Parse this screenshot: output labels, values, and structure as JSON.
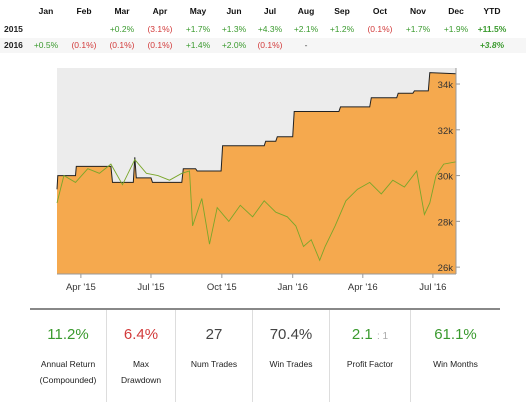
{
  "returns_table": {
    "headers": [
      "Jan",
      "Feb",
      "Mar",
      "Apr",
      "May",
      "Jun",
      "Jul",
      "Aug",
      "Sep",
      "Oct",
      "Nov",
      "Dec",
      "YTD"
    ],
    "rows": [
      {
        "year": "2015",
        "cells": [
          "",
          "",
          "+0.2%",
          "(3.1%)",
          "+1.7%",
          "+1.3%",
          "+4.3%",
          "+2.1%",
          "+1.2%",
          "(0.1%)",
          "+1.7%",
          "+1.9%",
          "+11.5%"
        ]
      },
      {
        "year": "2016",
        "cells": [
          "+0.5%",
          "(0.1%)",
          "(0.1%)",
          "(0.1%)",
          "+1.4%",
          "+2.0%",
          "(0.1%)",
          "-",
          "",
          "",
          "",
          "",
          "+3.8%"
        ]
      }
    ]
  },
  "chart_data": {
    "type": "area",
    "x_ticks": [
      "Apr '15",
      "Jul '15",
      "Oct '15",
      "Jan '16",
      "Apr '16",
      "Jul '16"
    ],
    "y_ticks": [
      "34k",
      "32k",
      "30k",
      "28k",
      "26k"
    ],
    "ylim": [
      25700,
      34700
    ],
    "x_domain": [
      "2015-03-01",
      "2016-07-31"
    ],
    "series": [
      {
        "kind": "area",
        "color": "#f5a94e",
        "points": [
          [
            "2015-03-01",
            29400
          ],
          [
            "2015-03-02",
            30000
          ],
          [
            "2015-03-25",
            30000
          ],
          [
            "2015-03-26",
            30400
          ],
          [
            "2015-05-10",
            30400
          ],
          [
            "2015-05-12",
            29700
          ],
          [
            "2015-06-08",
            29700
          ],
          [
            "2015-06-10",
            30800
          ],
          [
            "2015-06-12",
            29900
          ],
          [
            "2015-07-01",
            29900
          ],
          [
            "2015-07-03",
            29700
          ],
          [
            "2015-08-10",
            29700
          ],
          [
            "2015-08-12",
            30300
          ],
          [
            "2015-08-28",
            30300
          ],
          [
            "2015-08-30",
            30200
          ],
          [
            "2015-09-30",
            30200
          ],
          [
            "2015-10-02",
            31300
          ],
          [
            "2015-11-25",
            31300
          ],
          [
            "2015-11-27",
            31500
          ],
          [
            "2015-12-10",
            31500
          ],
          [
            "2015-12-12",
            31700
          ],
          [
            "2016-01-01",
            31700
          ],
          [
            "2016-01-03",
            32800
          ],
          [
            "2016-03-01",
            32800
          ],
          [
            "2016-03-03",
            33000
          ],
          [
            "2016-04-10",
            33000
          ],
          [
            "2016-04-12",
            33400
          ],
          [
            "2016-05-15",
            33400
          ],
          [
            "2016-05-17",
            33600
          ],
          [
            "2016-06-05",
            33600
          ],
          [
            "2016-06-07",
            33700
          ],
          [
            "2016-06-25",
            33700
          ],
          [
            "2016-06-27",
            34500
          ],
          [
            "2016-07-31",
            34450
          ]
        ]
      },
      {
        "kind": "line",
        "color": "#7aa62a",
        "points": [
          [
            "2015-03-01",
            28800
          ],
          [
            "2015-03-10",
            30000
          ],
          [
            "2015-03-25",
            29700
          ],
          [
            "2015-04-10",
            30300
          ],
          [
            "2015-04-25",
            30100
          ],
          [
            "2015-05-10",
            30500
          ],
          [
            "2015-05-25",
            29600
          ],
          [
            "2015-06-10",
            30700
          ],
          [
            "2015-06-25",
            30100
          ],
          [
            "2015-07-10",
            30000
          ],
          [
            "2015-07-25",
            29800
          ],
          [
            "2015-08-10",
            30100
          ],
          [
            "2015-08-20",
            30200
          ],
          [
            "2015-08-24",
            27800
          ],
          [
            "2015-09-05",
            29000
          ],
          [
            "2015-09-15",
            27000
          ],
          [
            "2015-09-25",
            28600
          ],
          [
            "2015-10-10",
            28000
          ],
          [
            "2015-10-25",
            28700
          ],
          [
            "2015-11-10",
            28200
          ],
          [
            "2015-11-25",
            28900
          ],
          [
            "2015-12-10",
            28400
          ],
          [
            "2015-12-25",
            28200
          ],
          [
            "2016-01-05",
            27800
          ],
          [
            "2016-01-15",
            26900
          ],
          [
            "2016-01-25",
            27200
          ],
          [
            "2016-02-05",
            26300
          ],
          [
            "2016-02-12",
            26900
          ],
          [
            "2016-02-25",
            27800
          ],
          [
            "2016-03-10",
            28900
          ],
          [
            "2016-03-25",
            29400
          ],
          [
            "2016-04-10",
            29700
          ],
          [
            "2016-04-25",
            29200
          ],
          [
            "2016-05-10",
            29800
          ],
          [
            "2016-05-25",
            29500
          ],
          [
            "2016-06-10",
            30200
          ],
          [
            "2016-06-20",
            28300
          ],
          [
            "2016-06-27",
            28800
          ],
          [
            "2016-07-05",
            30000
          ],
          [
            "2016-07-15",
            30500
          ],
          [
            "2016-07-31",
            30600
          ]
        ]
      }
    ]
  },
  "stats": [
    {
      "value": "11.2%",
      "label": "Annual Return (Compounded)",
      "color": "green"
    },
    {
      "value": "6.4%",
      "label": "Max Drawdown",
      "color": "red"
    },
    {
      "value": "27",
      "label": "Num Trades",
      "color": "dark"
    },
    {
      "value": "70.4%",
      "label": "Win Trades",
      "color": "dark"
    },
    {
      "value": "2.1",
      "ratio": ": 1",
      "label": "Profit Factor",
      "color": "green"
    },
    {
      "value": "61.1%",
      "label": "Win Months",
      "color": "green"
    }
  ]
}
